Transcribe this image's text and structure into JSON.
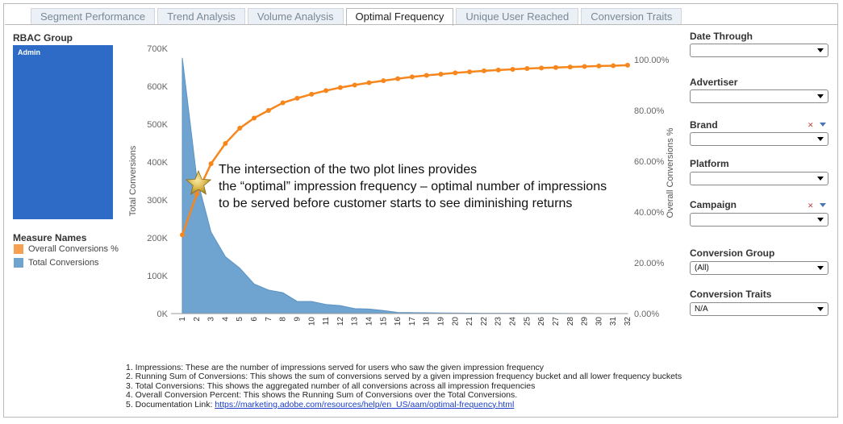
{
  "tabs": [
    {
      "label": "Segment Performance",
      "active": false
    },
    {
      "label": "Trend Analysis",
      "active": false
    },
    {
      "label": "Volume Analysis",
      "active": false
    },
    {
      "label": "Optimal Frequency",
      "active": true
    },
    {
      "label": "Unique User Reached",
      "active": false
    },
    {
      "label": "Conversion Traits",
      "active": false
    }
  ],
  "rbac": {
    "title": "RBAC Group",
    "item": "Admin"
  },
  "legend": {
    "title": "Measure Names",
    "items": [
      {
        "label": "Overall Conversions %",
        "color": "#f5a052"
      },
      {
        "label": "Total Conversions",
        "color": "#6fa3d0"
      }
    ]
  },
  "annotation": {
    "lines": [
      "The intersection of the two plot lines provides",
      "the “optimal” impression frequency – optimal number of impressions",
      "to be served before customer starts to see diminishing returns"
    ]
  },
  "notes": {
    "items": [
      "1. Impressions: These are the number of impressions served for users who saw the given impression frequency",
      "2. Running Sum of Conversions: This shows the sum of conversions served by a given impression frequency bucket and all lower frequency buckets",
      "3. Total Conversions: This shows the aggregated number of all conversions across all impression frequencies",
      "4. Overall Conversion Percent: This shows the Running Sum of Conversions over the Total Conversions."
    ],
    "link_prefix": "5. Documentation Link: ",
    "link_text": "https://marketing.adobe.com/resources/help/en_US/aam/optimal-frequency.html"
  },
  "filters": {
    "date_through": {
      "label": "Date Through",
      "value": ""
    },
    "advertiser": {
      "label": "Advertiser",
      "value": ""
    },
    "brand": {
      "label": "Brand",
      "value": ""
    },
    "platform": {
      "label": "Platform",
      "value": ""
    },
    "campaign": {
      "label": "Campaign",
      "value": ""
    },
    "conversion_group": {
      "label": "Conversion Group",
      "value": "(All)"
    },
    "conversion_traits": {
      "label": "Conversion Traits",
      "value": "N/A"
    }
  },
  "colors": {
    "area": "#6fa3d0",
    "line": "#f7861c",
    "admin": "#2e6bc6"
  },
  "chart_data": {
    "type": "area+line",
    "x": [
      1,
      2,
      3,
      4,
      5,
      6,
      7,
      8,
      9,
      10,
      11,
      12,
      13,
      14,
      15,
      16,
      17,
      18,
      19,
      20,
      21,
      22,
      23,
      24,
      25,
      26,
      27,
      28,
      29,
      30,
      31,
      32
    ],
    "x_tick_labels": [
      "1",
      "2",
      "3",
      "4",
      "5",
      "6",
      "7",
      "8",
      "9",
      "10",
      "11",
      "12",
      "13",
      "14",
      "15",
      "16",
      "17",
      "18",
      "19",
      "20",
      "21",
      "22",
      "23",
      "24",
      "25",
      "26",
      "27",
      "28",
      "29",
      "30",
      "31",
      "32"
    ],
    "series": [
      {
        "name": "Total Conversions",
        "axis": "left",
        "type": "area",
        "values": [
          675000,
          360000,
          215000,
          150000,
          120000,
          78000,
          62000,
          55000,
          32000,
          32000,
          24000,
          21000,
          13000,
          12000,
          8000,
          3000,
          2500,
          2000,
          1500,
          1200,
          1000,
          900,
          800,
          700,
          600,
          500,
          400,
          300,
          200,
          100,
          50,
          20
        ]
      },
      {
        "name": "Overall Conversions %",
        "axis": "right",
        "type": "line",
        "values": [
          31,
          47,
          59,
          67,
          73,
          77,
          80,
          83,
          84.8,
          86.4,
          87.8,
          89,
          90,
          90.9,
          91.7,
          92.5,
          93.2,
          93.8,
          94.3,
          94.8,
          95.2,
          95.6,
          95.9,
          96.2,
          96.5,
          96.7,
          96.9,
          97.1,
          97.3,
          97.5,
          97.6,
          97.8
        ]
      }
    ],
    "y_left": {
      "label": "Total Conversions",
      "min": 0,
      "max": 700000,
      "ticks": [
        "0K",
        "100K",
        "200K",
        "300K",
        "400K",
        "500K",
        "600K",
        "700K"
      ]
    },
    "y_right": {
      "label": "Overall Conversions %",
      "min": 0,
      "max": 100,
      "ticks": [
        "0.00%",
        "20.00%",
        "40.00%",
        "60.00%",
        "80.00%",
        "100.00%"
      ]
    }
  }
}
